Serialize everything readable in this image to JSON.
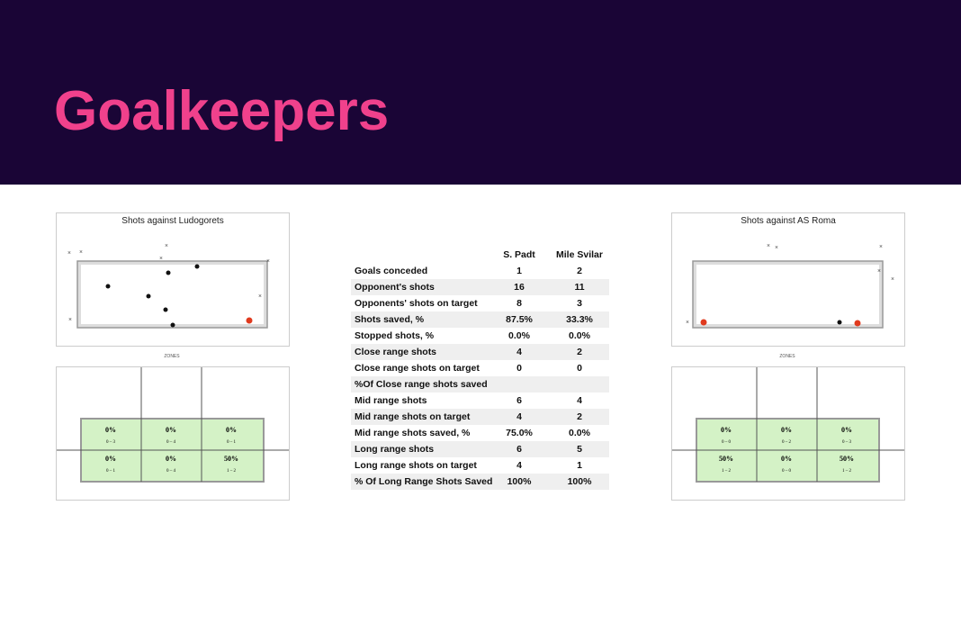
{
  "header": {
    "title": "Goalkeepers"
  },
  "left_panel": {
    "title": "Shots against Ludogorets",
    "zones_label": "ZONES",
    "zones": [
      [
        "0%",
        "0 – 3"
      ],
      [
        "0%",
        "0 – 4"
      ],
      [
        "0%",
        "0 – 1"
      ],
      [
        "0%",
        "0 – 1"
      ],
      [
        "0%",
        "0 – 4"
      ],
      [
        "50%",
        "1 – 2"
      ]
    ]
  },
  "right_panel": {
    "title": "Shots against AS Roma",
    "zones_label": "ZONES",
    "zones": [
      [
        "0%",
        "0 – 0"
      ],
      [
        "0%",
        "0 – 2"
      ],
      [
        "0%",
        "0 – 3"
      ],
      [
        "50%",
        "1 – 2"
      ],
      [
        "0%",
        "0 – 0"
      ],
      [
        "50%",
        "1 – 2"
      ]
    ]
  },
  "table": {
    "columns": [
      "S. Padt",
      "Mile Svilar"
    ],
    "rows": [
      [
        "Goals conceded",
        "1",
        "2"
      ],
      [
        "Opponent's shots",
        "16",
        "11"
      ],
      [
        "Opponents' shots  on target",
        "8",
        "3"
      ],
      [
        "Shots saved, %",
        "87.5%",
        "33.3%"
      ],
      [
        "Stopped shots, %",
        "0.0%",
        "0.0%"
      ],
      [
        "Close range shots",
        "4",
        "2"
      ],
      [
        "Close range shots on target",
        "0",
        "0"
      ],
      [
        "%Of Close range shots saved"
      ],
      [
        "Mid range shots",
        "6",
        "4"
      ],
      [
        "Mid range shots on target",
        "4",
        "2"
      ],
      [
        "Mid range shots saved, %",
        "75.0%",
        "0.0%"
      ],
      [
        "Long range shots",
        "6",
        "5"
      ],
      [
        "Long range shots on target",
        "4",
        "1"
      ],
      [
        "% Of Long Range Shots Saved",
        "100%",
        "100%"
      ]
    ]
  }
}
